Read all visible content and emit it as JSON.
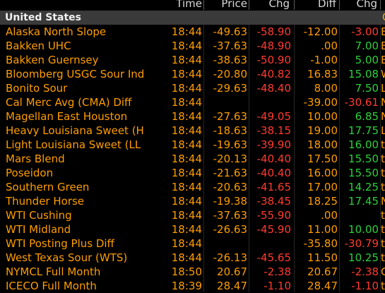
{
  "header": {
    "time": "Time",
    "price": "Price",
    "chg": "Chg",
    "diff": "Diff",
    "chg2": "Chg"
  },
  "section": {
    "title": "United States",
    "edge": "C"
  },
  "rows": [
    {
      "name": "Alaska North Slope",
      "time": "18:44",
      "price": "-49.63",
      "chg": "-58.90",
      "diff": "-12.00",
      "chg2": "-3.00",
      "chg2_dir": "neg",
      "tail": "E"
    },
    {
      "name": "Bakken UHC",
      "time": "18:44",
      "price": "-37.63",
      "chg": "-48.90",
      "diff": ".00",
      "chg2": "7.00",
      "chg2_dir": "pos",
      "tail": "E"
    },
    {
      "name": "Bakken Guernsey",
      "time": "18:44",
      "price": "-38.63",
      "chg": "-50.90",
      "diff": "-1.00",
      "chg2": "5.00",
      "chg2_dir": "pos",
      "tail": "E"
    },
    {
      "name": "Bloomberg USGC Sour Ind",
      "time": "18:44",
      "price": "-20.80",
      "chg": "-40.82",
      "diff": "16.83",
      "chg2": "15.08",
      "chg2_dir": "pos",
      "tail": "W"
    },
    {
      "name": "Bonito Sour",
      "time": "18:44",
      "price": "-29.63",
      "chg": "-48.40",
      "diff": "8.00",
      "chg2": "7.50",
      "chg2_dir": "pos",
      "tail": "L"
    },
    {
      "name": "Cal Merc Avg (CMA) Diff",
      "time": "18:44",
      "price": "",
      "chg": "",
      "diff": "-39.00",
      "chg2": "-30.61",
      "chg2_dir": "neg",
      "tail": "N"
    },
    {
      "name": "Magellan East Houston",
      "time": "18:44",
      "price": "-27.63",
      "chg": "-49.05",
      "diff": "10.00",
      "chg2": "6.85",
      "chg2_dir": "pos",
      "tail": "N"
    },
    {
      "name": "Heavy Louisiana Sweet (H",
      "time": "18:44",
      "price": "-18.63",
      "chg": "-38.15",
      "diff": "19.00",
      "chg2": "17.75",
      "chg2_dir": "pos",
      "tail": "L"
    },
    {
      "name": "Light Louisiana Sweet (LL",
      "time": "18:44",
      "price": "-19.63",
      "chg": "-39.90",
      "diff": "18.00",
      "chg2": "16.00",
      "chg2_dir": "pos",
      "tail": "t"
    },
    {
      "name": "Mars Blend",
      "time": "18:44",
      "price": "-20.13",
      "chg": "-40.40",
      "diff": "17.50",
      "chg2": "15.50",
      "chg2_dir": "pos",
      "tail": "t"
    },
    {
      "name": "Poseidon",
      "time": "18:44",
      "price": "-21.63",
      "chg": "-40.40",
      "diff": "16.00",
      "chg2": "15.50",
      "chg2_dir": "pos",
      "tail": "t"
    },
    {
      "name": "Southern Green",
      "time": "18:44",
      "price": "-20.63",
      "chg": "-41.65",
      "diff": "17.00",
      "chg2": "14.25",
      "chg2_dir": "pos",
      "tail": "t"
    },
    {
      "name": "Thunder Horse",
      "time": "18:44",
      "price": "-19.38",
      "chg": "-38.45",
      "diff": "18.25",
      "chg2": "17.45",
      "chg2_dir": "pos",
      "tail": "N"
    },
    {
      "name": "WTI Cushing",
      "time": "18:44",
      "price": "-37.63",
      "chg": "-55.90",
      "diff": ".00",
      "chg2": "",
      "chg2_dir": "pos",
      "tail": "t"
    },
    {
      "name": "WTI Midland",
      "time": "18:44",
      "price": "-26.63",
      "chg": "-45.90",
      "diff": "11.00",
      "chg2": "10.00",
      "chg2_dir": "pos",
      "tail": "t"
    },
    {
      "name": "WTI Posting Plus Diff",
      "time": "18:44",
      "price": "",
      "chg": "",
      "diff": "-35.80",
      "chg2": "-30.79",
      "chg2_dir": "neg",
      "tail": "t"
    },
    {
      "name": "West Texas Sour (WTS)",
      "time": "18:44",
      "price": "-26.13",
      "chg": "-45.65",
      "diff": "11.50",
      "chg2": "10.25",
      "chg2_dir": "pos",
      "tail": "t"
    },
    {
      "name": "NYMCL Full Month",
      "time": "18:50",
      "price": "20.67",
      "chg": "-2.38",
      "diff": "20.67",
      "chg2": "-2.38",
      "chg2_dir": "neg",
      "tail": "C"
    },
    {
      "name": "ICECO Full Month",
      "time": "18:39",
      "price": "28.47",
      "chg": "-1.10",
      "diff": "28.47",
      "chg2": "-1.10",
      "chg2_dir": "neg",
      "tail": "t"
    }
  ],
  "colors": {
    "background": "#000000",
    "label": "#ff9d00",
    "negative": "#ff3b30",
    "positive": "#2bd03b",
    "section_bg": "#3a3a3a"
  }
}
